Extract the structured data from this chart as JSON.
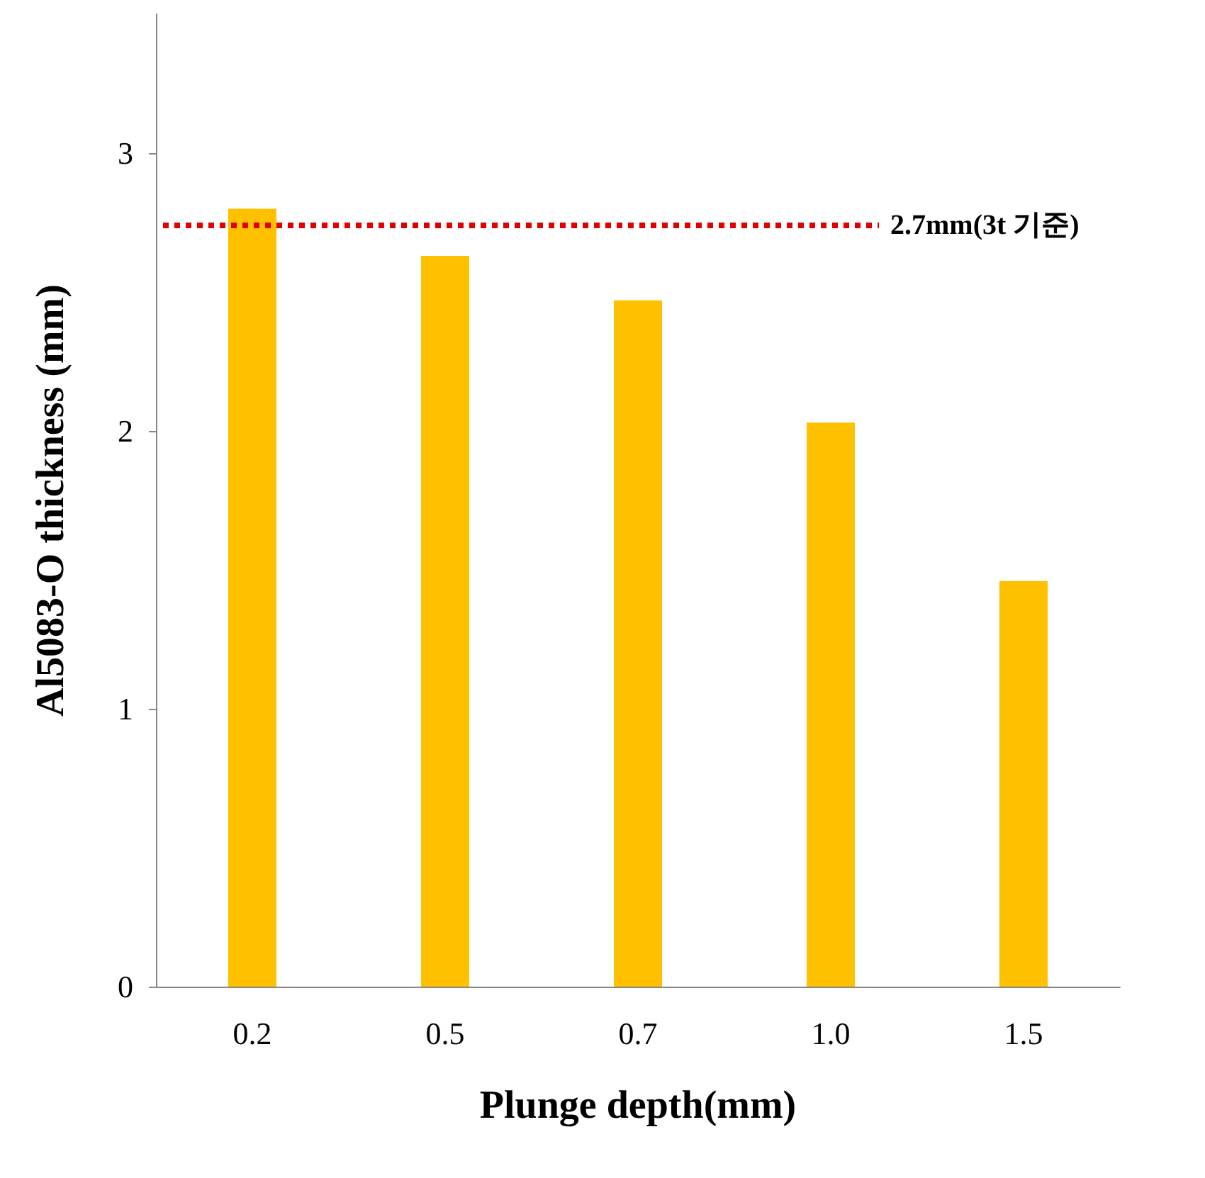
{
  "chart_data": {
    "type": "bar",
    "xlabel": "Plunge depth(mm)",
    "ylabel": "Al5083-O thickness (mm)",
    "categories": [
      "0.2",
      "0.5",
      "0.7",
      "1.0",
      "1.5"
    ],
    "values": [
      2.8,
      2.63,
      2.47,
      2.03,
      1.46
    ],
    "color": "#ffc000",
    "ylim": [
      0,
      3.5
    ],
    "yticks": [
      0,
      1,
      2,
      3
    ],
    "grid": false,
    "ref_lines": [
      {
        "axis": "y",
        "value": 2.74,
        "label": "2.7mm(3t 기준)",
        "color": "#e00000",
        "line_style": "dotted"
      }
    ]
  }
}
